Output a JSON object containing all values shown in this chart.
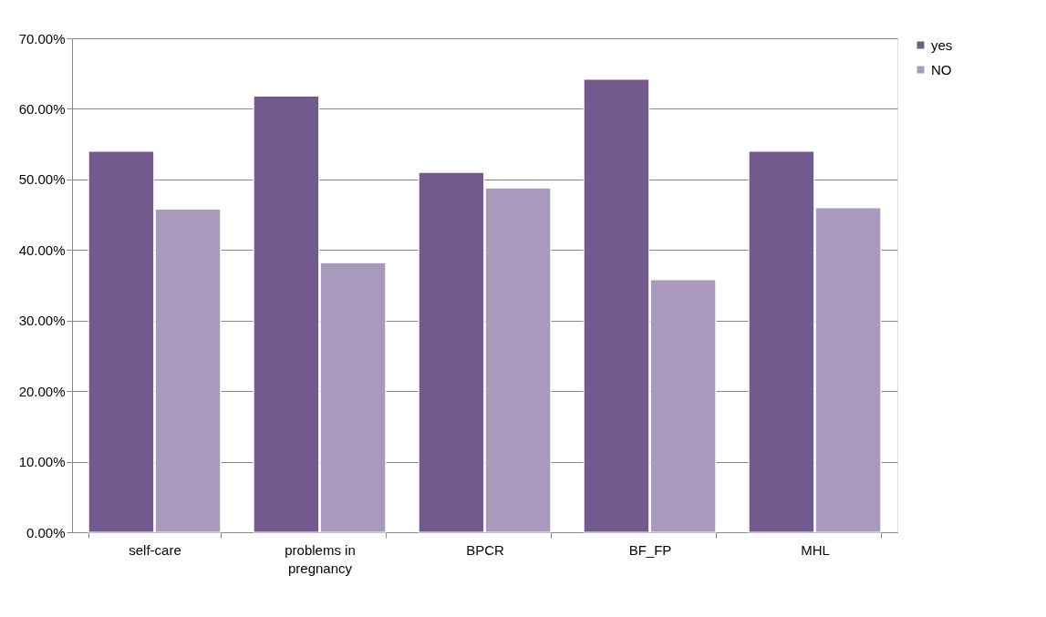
{
  "chart_data": {
    "type": "bar",
    "categories": [
      "self-care",
      "problems in pregnancy",
      "BPCR",
      "BF_FP",
      "MHL"
    ],
    "series": [
      {
        "name": "yes",
        "color": "#725a8f",
        "values": [
          54.0,
          61.8,
          51.0,
          64.2,
          54.0
        ]
      },
      {
        "name": "NO",
        "color": "#a899bd",
        "values": [
          45.8,
          38.2,
          48.8,
          35.8,
          46.0
        ]
      }
    ],
    "ylim": [
      0,
      70
    ],
    "yticks": [
      {
        "value": 0,
        "label": "0.00%"
      },
      {
        "value": 10,
        "label": "10.00%"
      },
      {
        "value": 20,
        "label": "20.00%"
      },
      {
        "value": 30,
        "label": "30.00%"
      },
      {
        "value": 40,
        "label": "40.00%"
      },
      {
        "value": 50,
        "label": "50.00%"
      },
      {
        "value": 60,
        "label": "60.00%"
      },
      {
        "value": 70,
        "label": "70.00%"
      }
    ],
    "grid": "y",
    "legend": "right"
  }
}
